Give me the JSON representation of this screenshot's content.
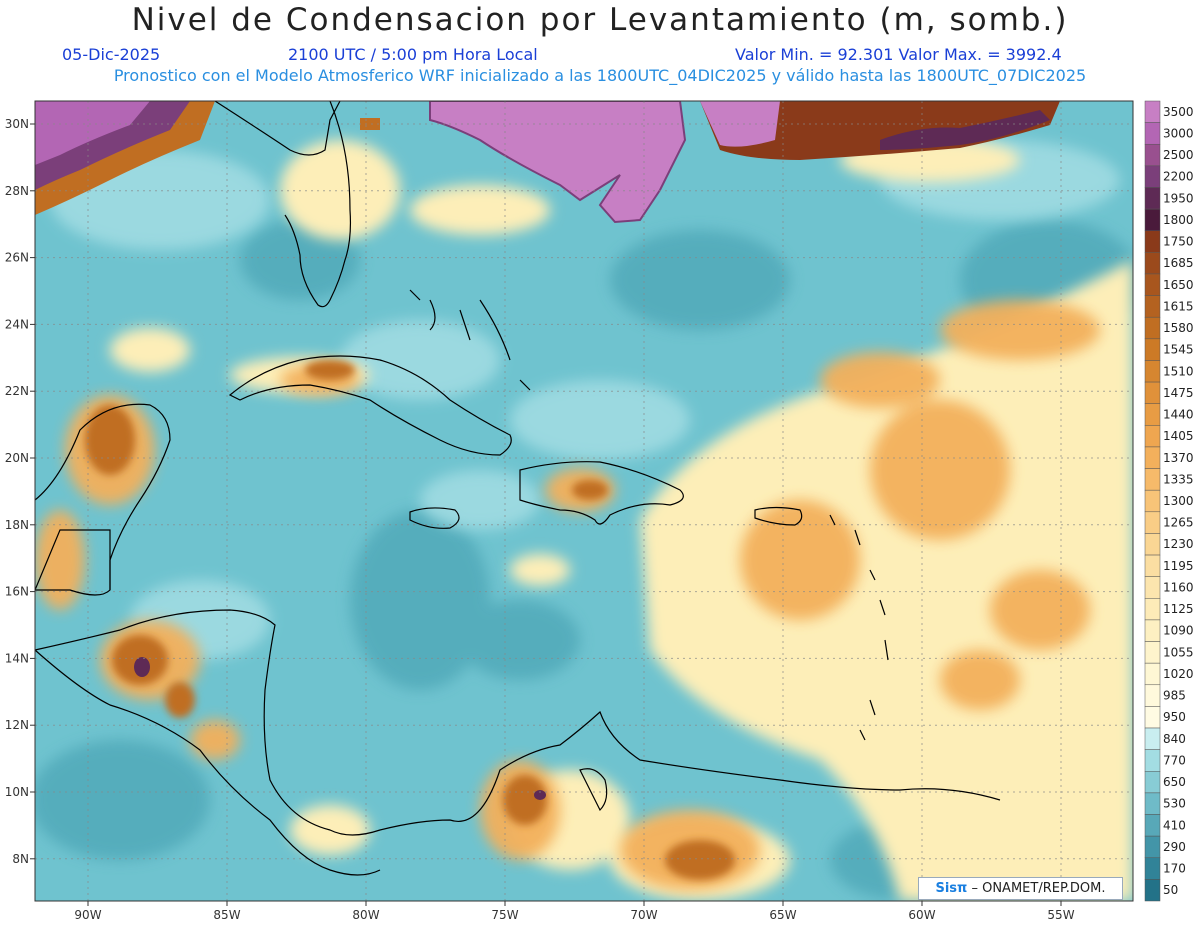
{
  "header": {
    "title": "Nivel de Condensacion por Levantamiento (m, somb.)",
    "date": "05-Dic-2025",
    "time": "2100 UTC / 5:00 pm Hora Local",
    "minmax": "Valor Min. = 92.301  Valor Max. = 3992.4",
    "subtitle": "Pronostico con el Modelo Atmosferico WRF inicializado a las 1800UTC_04DIC2025 y válido hasta las  1800UTC_07DIC2025"
  },
  "map": {
    "lon_ticks": [
      "90W",
      "85W",
      "80W",
      "75W",
      "70W",
      "65W",
      "60W",
      "55W"
    ],
    "lat_ticks": [
      "30N",
      "28N",
      "26N",
      "24N",
      "22N",
      "20N",
      "18N",
      "16N",
      "14N",
      "12N",
      "10N",
      "8N"
    ],
    "background_color": "#6fc3cf"
  },
  "legend": {
    "levels": [
      "3500",
      "3000",
      "2500",
      "2200",
      "1950",
      "1800",
      "1750",
      "1685",
      "1650",
      "1615",
      "1580",
      "1545",
      "1510",
      "1475",
      "1440",
      "1405",
      "1370",
      "1335",
      "1300",
      "1265",
      "1230",
      "1195",
      "1160",
      "1125",
      "1090",
      "1055",
      "1020",
      "985",
      "950",
      "840",
      "770",
      "650",
      "530",
      "410",
      "290",
      "170",
      "50"
    ],
    "colors": [
      "#c77fc4",
      "#b366b4",
      "#99508f",
      "#7b3f7a",
      "#5e2a55",
      "#4a1a3b",
      "#8a3a1a",
      "#9b4a1c",
      "#a8561e",
      "#b46220",
      "#c06e22",
      "#cc7a26",
      "#d68630",
      "#e0913a",
      "#e89c44",
      "#efa650",
      "#f3b05c",
      "#f6ba6a",
      "#f8c478",
      "#f9cd86",
      "#fad694",
      "#fbdea2",
      "#fce5ae",
      "#fdebb8",
      "#fdf0c2",
      "#fef4cc",
      "#fef7d4",
      "#fff9dc",
      "#fffbe3",
      "#c9eef0",
      "#a3dde3",
      "#88ccd5",
      "#6fbbc8",
      "#58a8b8",
      "#4395a8",
      "#318398",
      "#237288"
    ]
  },
  "credit": {
    "logo": "Sisπ",
    "text": "– ONAMET/REP.DOM."
  }
}
